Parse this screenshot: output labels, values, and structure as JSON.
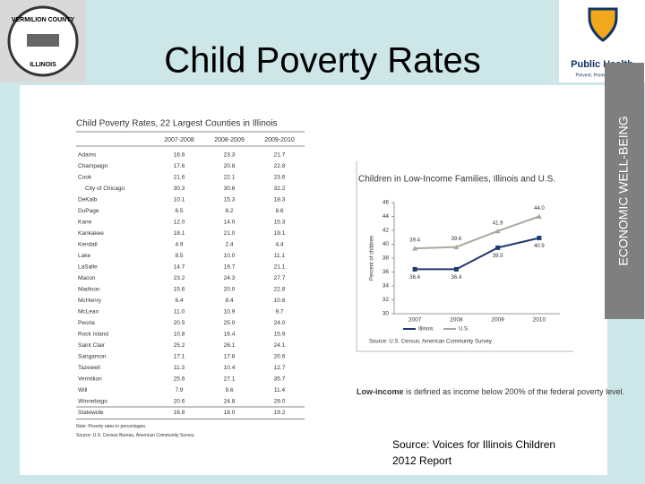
{
  "header": {
    "title": "Child Poverty Rates",
    "left_logo": [
      "VERMILION COUNTY",
      "ILLINOIS"
    ],
    "right_logo": [
      "Public Health",
      "Prevent. Promote. Protect."
    ],
    "banner": "ECONOMIC WELL-BEING"
  },
  "table": {
    "title": "Child Poverty Rates, 22 Largest Counties in Illinois",
    "columns": [
      "2007-2008",
      "2008-2009",
      "2009-2010"
    ],
    "rows": [
      [
        "Adams",
        "16.6",
        "23.3",
        "21.7"
      ],
      [
        "Champaign",
        "17.6",
        "20.8",
        "22.8"
      ],
      [
        "Cook",
        "21.6",
        "22.1",
        "23.6"
      ],
      [
        "City of Chicago",
        "30.3",
        "30.6",
        "32.2"
      ],
      [
        "DeKalb",
        "10.1",
        "15.3",
        "18.3"
      ],
      [
        "DuPage",
        "6.5",
        "8.2",
        "8.6"
      ],
      [
        "Kane",
        "12.0",
        "14.0",
        "15.3"
      ],
      [
        "Kankakee",
        "18.1",
        "21.0",
        "19.1"
      ],
      [
        "Kendall",
        "4.9",
        "2.4",
        "4.4"
      ],
      [
        "Lake",
        "8.5",
        "10.0",
        "11.1"
      ],
      [
        "LaSalle",
        "14.7",
        "19.7",
        "21.1"
      ],
      [
        "Macon",
        "23.2",
        "24.3",
        "27.7"
      ],
      [
        "Madison",
        "15.6",
        "20.0",
        "22.8"
      ],
      [
        "McHenry",
        "6.4",
        "8.4",
        "10.6"
      ],
      [
        "McLean",
        "11.0",
        "10.9",
        "9.7"
      ],
      [
        "Peoria",
        "20.5",
        "25.0",
        "24.0"
      ],
      [
        "Rock Island",
        "10.8",
        "16.4",
        "15.9"
      ],
      [
        "Saint Clair",
        "25.2",
        "26.1",
        "24.1"
      ],
      [
        "Sangamon",
        "17.1",
        "17.8",
        "20.6"
      ],
      [
        "Tazewell",
        "11.3",
        "10.4",
        "12.7"
      ],
      [
        "Vermilion",
        "25.6",
        "27.1",
        "35.7"
      ],
      [
        "Will",
        "7.9",
        "9.6",
        "11.4"
      ],
      [
        "Winnebago",
        "20.6",
        "24.8",
        "29.0"
      ],
      [
        "Statewide",
        "16.8",
        "18.0",
        "19.2"
      ]
    ],
    "notes": [
      "Note: Poverty rates in percentages.",
      "Source: U.S. Census Bureau, American Community Survey."
    ]
  },
  "chart_data": {
    "type": "line",
    "title": "Children in Low-Income Families, Illinois and U.S.",
    "y_label": "Percent of children",
    "categories": [
      "2007",
      "2008",
      "2009",
      "2010"
    ],
    "series": [
      {
        "name": "Illinois",
        "color": "#1f3b6e",
        "values": [
          36.4,
          36.4,
          39.5,
          40.9
        ],
        "value_labels": [
          "36.4",
          "36.4",
          "39.5",
          "40.9"
        ]
      },
      {
        "name": "U.S.",
        "color": "#aaa99e",
        "values": [
          39.4,
          39.6,
          41.9,
          44.0
        ],
        "value_labels": [
          "39.4",
          "39.6",
          "41.9",
          "44.0"
        ]
      }
    ],
    "ylim": [
      30,
      46
    ],
    "yticks": [
      30,
      32,
      34,
      36,
      38,
      40,
      42,
      44,
      46
    ],
    "grid": false,
    "source": "Source: U.S. Census, American Community Survey."
  },
  "definition": {
    "term": "Low-income",
    "text": " is defined as income below 200% of the federal poverty level."
  },
  "source_note": [
    "Source:  Voices for Illinois Children",
    "2012 Report"
  ]
}
